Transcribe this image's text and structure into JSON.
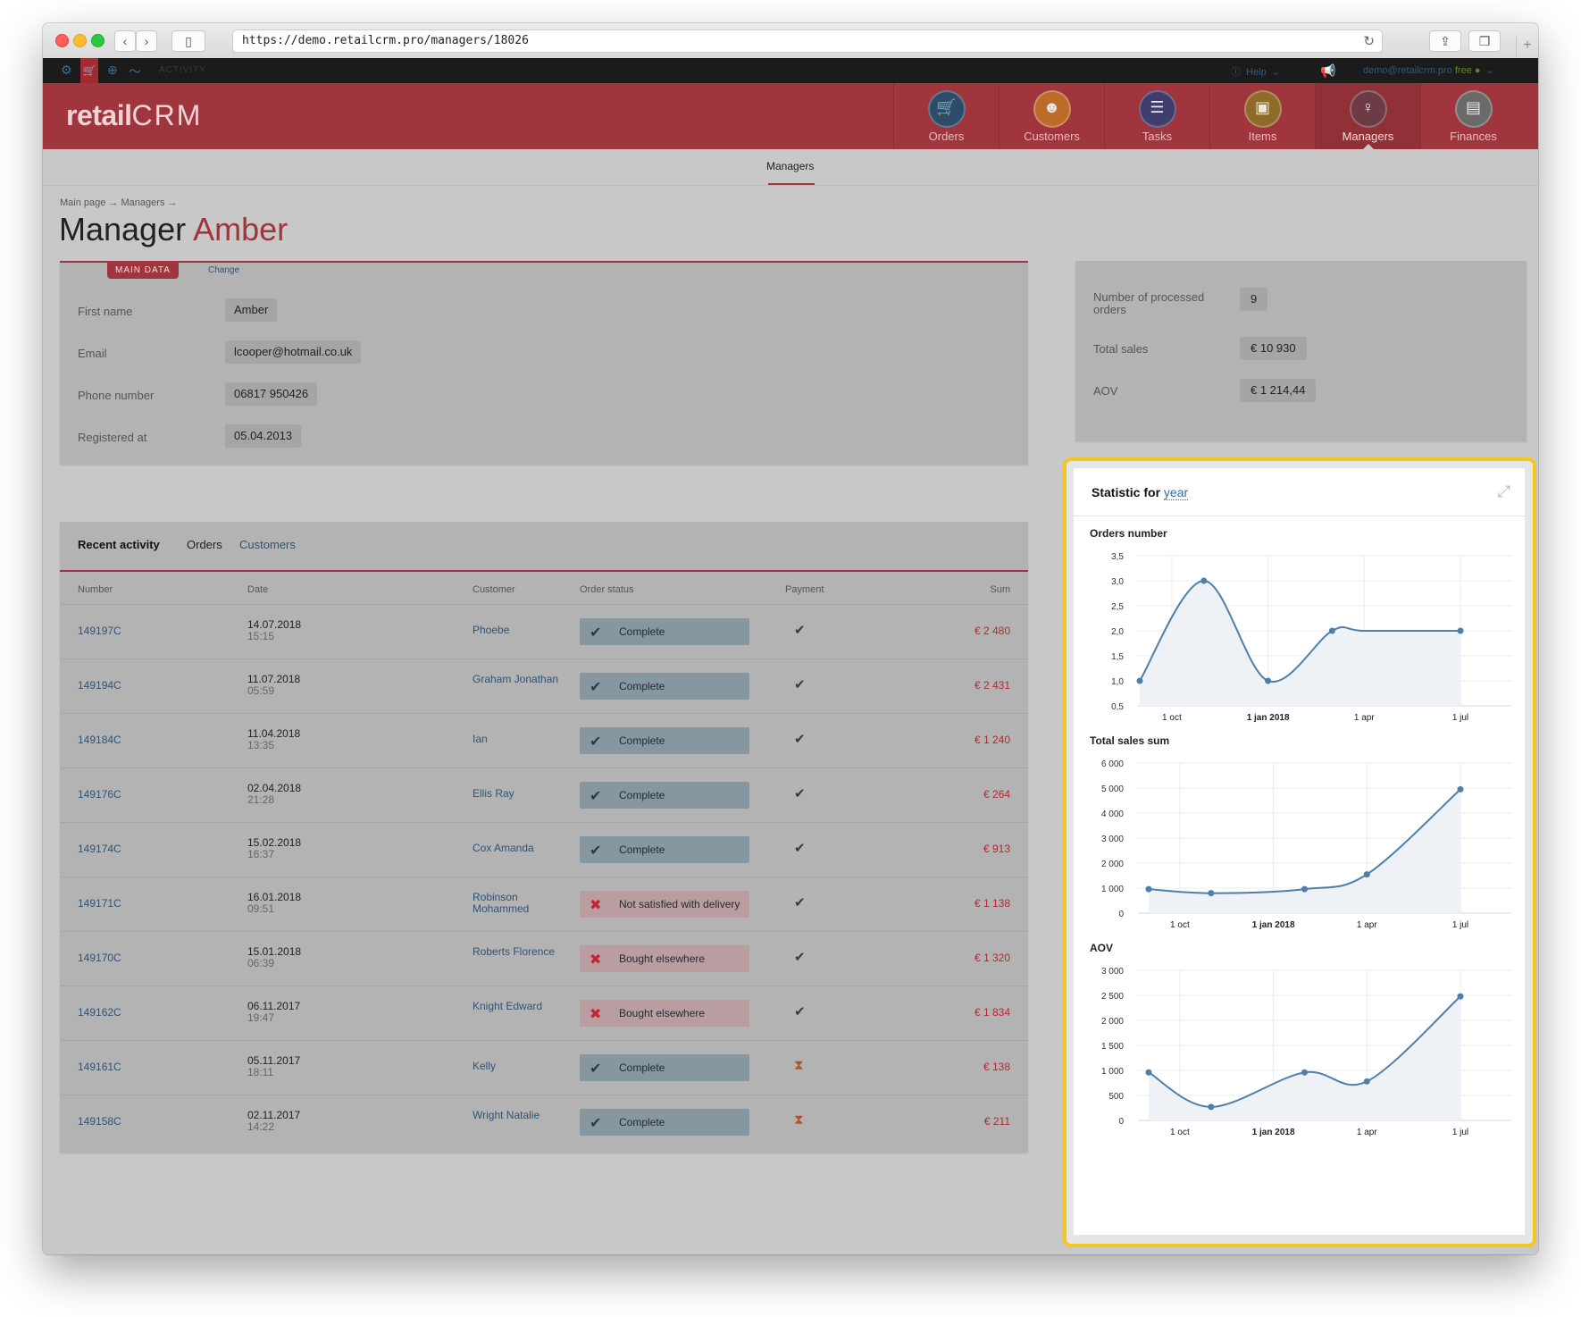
{
  "browser": {
    "url": "https://demo.retailcrm.pro/managers/18026"
  },
  "topbar": {
    "activity_label": "ACTIVITY",
    "help": "Help",
    "user": "demo@retailcrm.pro",
    "plan": "free"
  },
  "header": {
    "logo_left": "retail",
    "logo_right": "CRM",
    "nav": [
      {
        "label": "Orders",
        "icon": "cart-icon",
        "active": false
      },
      {
        "label": "Customers",
        "icon": "person-icon",
        "active": false
      },
      {
        "label": "Tasks",
        "icon": "list-icon",
        "active": false
      },
      {
        "label": "Items",
        "icon": "box-icon",
        "active": false
      },
      {
        "label": "Managers",
        "icon": "manager-icon",
        "active": true
      },
      {
        "label": "Finances",
        "icon": "register-icon",
        "active": false
      }
    ]
  },
  "subnav": {
    "tab": "Managers"
  },
  "breadcrumb": "Main page → Managers →",
  "page_title": {
    "prefix": "Manager",
    "name": "Amber"
  },
  "main_data": {
    "tag": "MAIN DATA",
    "change": "Change",
    "fields": [
      {
        "label": "First name",
        "value": "Amber"
      },
      {
        "label": "Email",
        "value": "lcooper@hotmail.co.uk"
      },
      {
        "label": "Phone number",
        "value": "06817 950426"
      },
      {
        "label": "Registered at",
        "value": "05.04.2013"
      }
    ]
  },
  "summary": {
    "processed_label": "Number of processed orders",
    "processed_value": "9",
    "sales_label": "Total sales",
    "sales_value": "€ 10 930",
    "aov_label": "AOV",
    "aov_value": "€ 1 214,44"
  },
  "activity": {
    "tabs": {
      "recent": "Recent activity",
      "orders": "Orders",
      "customers": "Customers"
    },
    "columns": {
      "number": "Number",
      "date": "Date",
      "customer": "Customer",
      "status": "Order status",
      "payment": "Payment",
      "sum": "Sum"
    },
    "rows": [
      {
        "number": "149197C",
        "date": "14.07.2018",
        "time": "15:15",
        "customer": "Phoebe",
        "status": "Complete",
        "ok": true,
        "payment": "paid",
        "sum": "€ 2 480"
      },
      {
        "number": "149194C",
        "date": "11.07.2018",
        "time": "05:59",
        "customer": "Graham Jonathan",
        "status": "Complete",
        "ok": true,
        "payment": "paid",
        "sum": "€ 2 431"
      },
      {
        "number": "149184C",
        "date": "11.04.2018",
        "time": "13:35",
        "customer": "Ian",
        "status": "Complete",
        "ok": true,
        "payment": "paid",
        "sum": "€ 1 240"
      },
      {
        "number": "149176C",
        "date": "02.04.2018",
        "time": "21:28",
        "customer": "Ellis Ray",
        "status": "Complete",
        "ok": true,
        "payment": "paid",
        "sum": "€ 264"
      },
      {
        "number": "149174C",
        "date": "15.02.2018",
        "time": "16:37",
        "customer": "Cox Amanda",
        "status": "Complete",
        "ok": true,
        "payment": "paid",
        "sum": "€ 913"
      },
      {
        "number": "149171C",
        "date": "16.01.2018",
        "time": "09:51",
        "customer": "Robinson Mohammed",
        "status": "Not satisfied with delivery",
        "ok": false,
        "payment": "paid",
        "sum": "€ 1 138"
      },
      {
        "number": "149170C",
        "date": "15.01.2018",
        "time": "06:39",
        "customer": "Roberts Florence",
        "status": "Bought elsewhere",
        "ok": false,
        "payment": "paid",
        "sum": "€ 1 320"
      },
      {
        "number": "149162C",
        "date": "06.11.2017",
        "time": "19:47",
        "customer": "Knight Edward",
        "status": "Bought elsewhere",
        "ok": false,
        "payment": "paid",
        "sum": "€ 1 834"
      },
      {
        "number": "149161C",
        "date": "05.11.2017",
        "time": "18:11",
        "customer": "Kelly",
        "status": "Complete",
        "ok": true,
        "payment": "pending",
        "sum": "€ 138"
      },
      {
        "number": "149158C",
        "date": "02.11.2017",
        "time": "14:22",
        "customer": "Wright Natalie",
        "status": "Complete",
        "ok": true,
        "payment": "pending",
        "sum": "€ 211"
      }
    ]
  },
  "statistic": {
    "title": "Statistic for",
    "period": "year"
  },
  "chart_data": [
    {
      "type": "line",
      "title": "Orders number",
      "x_ticks": [
        "1 oct",
        "1 jan 2018",
        "1 apr",
        "1 jul"
      ],
      "y_ticks": [
        "3,5",
        "3,0",
        "2,5",
        "2,0",
        "1,5",
        "1,0",
        "0,5"
      ],
      "ylim": [
        0.5,
        3.5
      ],
      "x": [
        "2017-09",
        "2017-11",
        "2018-01",
        "2018-03",
        "2018-04",
        "2018-07"
      ],
      "values": [
        1,
        3,
        1,
        2,
        2,
        2
      ],
      "marker_points": [
        0,
        1,
        2,
        3,
        5
      ],
      "color": "#4f7eaa"
    },
    {
      "type": "line",
      "title": "Total sales sum",
      "x_ticks": [
        "1 oct",
        "1 jan 2018",
        "1 apr",
        "1 jul"
      ],
      "y_ticks": [
        "6 000",
        "5 000",
        "4 000",
        "3 000",
        "2 000",
        "1 000",
        "0"
      ],
      "ylim": [
        0,
        6000
      ],
      "x": [
        "2017-09",
        "2017-11",
        "2018-02",
        "2018-04",
        "2018-07"
      ],
      "values": [
        960,
        800,
        960,
        1550,
        4950
      ],
      "color": "#4f7eaa"
    },
    {
      "type": "line",
      "title": "AOV",
      "x_ticks": [
        "1 oct",
        "1 jan 2018",
        "1 apr",
        "1 jul"
      ],
      "y_ticks": [
        "3 000",
        "2 500",
        "2 000",
        "1 500",
        "1 000",
        "500",
        "0"
      ],
      "ylim": [
        0,
        3000
      ],
      "x": [
        "2017-09",
        "2017-11",
        "2018-02",
        "2018-04",
        "2018-07"
      ],
      "values": [
        960,
        270,
        960,
        780,
        2480
      ],
      "color": "#4f7eaa"
    }
  ]
}
